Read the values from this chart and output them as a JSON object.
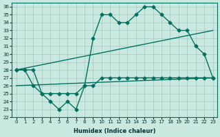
{
  "xlabel": "Humidex (Indice chaleur)",
  "ylabel": "",
  "bg_color": "#c8e8e0",
  "grid_color": "#a0c8c0",
  "line_color": "#007060",
  "xlim": [
    -0.5,
    23.5
  ],
  "ylim": [
    22,
    36.5
  ],
  "yticks": [
    22,
    23,
    24,
    25,
    26,
    27,
    28,
    29,
    30,
    31,
    32,
    33,
    34,
    35,
    36
  ],
  "xticks": [
    0,
    1,
    2,
    3,
    4,
    5,
    6,
    7,
    8,
    9,
    10,
    11,
    12,
    13,
    14,
    15,
    16,
    17,
    18,
    19,
    20,
    21,
    22,
    23
  ],
  "line1_x": [
    0,
    1,
    2,
    3,
    4,
    5,
    6,
    7,
    8,
    9,
    10,
    11,
    12,
    13,
    14,
    15,
    16,
    17,
    18,
    19,
    20,
    21,
    22,
    23
  ],
  "line1_y": [
    28,
    28,
    28,
    25,
    24,
    23,
    24,
    23,
    26,
    32,
    35,
    35,
    34,
    34,
    35,
    36,
    36,
    35,
    34,
    33,
    33,
    31,
    30,
    27
  ],
  "line2_x": [
    0,
    1,
    2,
    3,
    4,
    5,
    6,
    7,
    8,
    9,
    10,
    11,
    12,
    13,
    14,
    15,
    16,
    17,
    18,
    19,
    20,
    21,
    22,
    23
  ],
  "line2_y": [
    28,
    28,
    26,
    25,
    25,
    25,
    25,
    25,
    26,
    26,
    27,
    27,
    27,
    27,
    27,
    27,
    27,
    27,
    27,
    27,
    27,
    27,
    27,
    27
  ],
  "line3_x": [
    0,
    23
  ],
  "line3_y": [
    28,
    33
  ],
  "line4_x": [
    0,
    23
  ],
  "line4_y": [
    26,
    27
  ]
}
